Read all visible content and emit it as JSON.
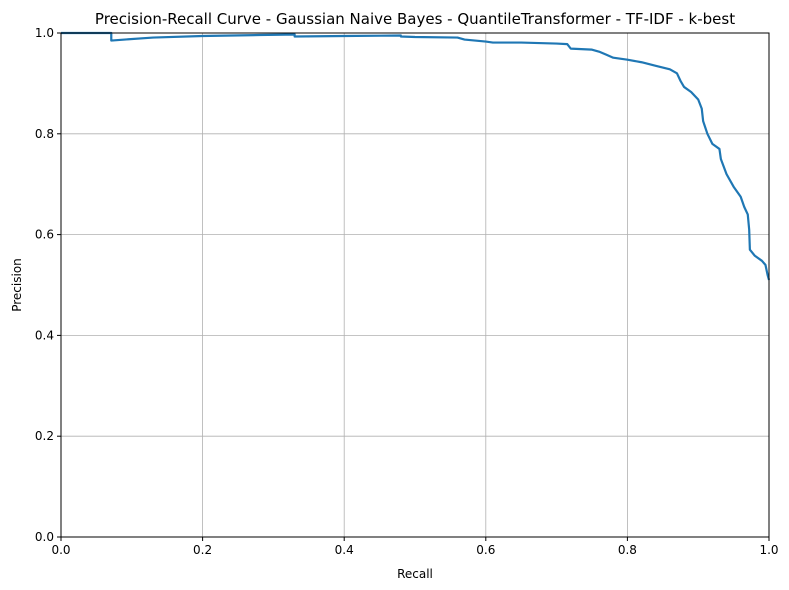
{
  "chart_data": {
    "type": "line",
    "title": "Precision-Recall Curve - Gaussian Naive Bayes - QuantileTransformer - TF-IDF - k-best",
    "xlabel": "Recall",
    "ylabel": "Precision",
    "xlim": [
      0.0,
      1.0
    ],
    "ylim": [
      0.0,
      1.0
    ],
    "grid": true,
    "legend": "none",
    "x_ticks": [
      "0.0",
      "0.2",
      "0.4",
      "0.6",
      "0.8",
      "1.0"
    ],
    "y_ticks": [
      "0.0",
      "0.2",
      "0.4",
      "0.6",
      "0.8",
      "1.0"
    ],
    "series": [
      {
        "color": "#1f77b4",
        "points": [
          [
            0.0,
            1.0
          ],
          [
            0.071,
            1.0
          ],
          [
            0.071,
            0.985
          ],
          [
            0.09,
            0.987
          ],
          [
            0.13,
            0.991
          ],
          [
            0.2,
            0.994
          ],
          [
            0.28,
            0.996
          ],
          [
            0.33,
            0.997
          ],
          [
            0.33,
            0.993
          ],
          [
            0.4,
            0.994
          ],
          [
            0.48,
            0.995
          ],
          [
            0.48,
            0.993
          ],
          [
            0.5,
            0.992
          ],
          [
            0.56,
            0.991
          ],
          [
            0.57,
            0.987
          ],
          [
            0.6,
            0.983
          ],
          [
            0.61,
            0.981
          ],
          [
            0.65,
            0.981
          ],
          [
            0.7,
            0.979
          ],
          [
            0.715,
            0.978
          ],
          [
            0.72,
            0.969
          ],
          [
            0.75,
            0.967
          ],
          [
            0.76,
            0.963
          ],
          [
            0.77,
            0.957
          ],
          [
            0.78,
            0.951
          ],
          [
            0.8,
            0.947
          ],
          [
            0.82,
            0.942
          ],
          [
            0.84,
            0.935
          ],
          [
            0.86,
            0.928
          ],
          [
            0.87,
            0.92
          ],
          [
            0.875,
            0.905
          ],
          [
            0.88,
            0.893
          ],
          [
            0.89,
            0.883
          ],
          [
            0.9,
            0.868
          ],
          [
            0.905,
            0.85
          ],
          [
            0.907,
            0.825
          ],
          [
            0.913,
            0.8
          ],
          [
            0.92,
            0.78
          ],
          [
            0.93,
            0.77
          ],
          [
            0.932,
            0.75
          ],
          [
            0.94,
            0.72
          ],
          [
            0.95,
            0.695
          ],
          [
            0.96,
            0.675
          ],
          [
            0.965,
            0.655
          ],
          [
            0.97,
            0.64
          ],
          [
            0.972,
            0.61
          ],
          [
            0.973,
            0.57
          ],
          [
            0.98,
            0.558
          ],
          [
            0.99,
            0.548
          ],
          [
            0.995,
            0.54
          ],
          [
            0.998,
            0.52
          ],
          [
            1.0,
            0.51
          ]
        ]
      }
    ]
  }
}
